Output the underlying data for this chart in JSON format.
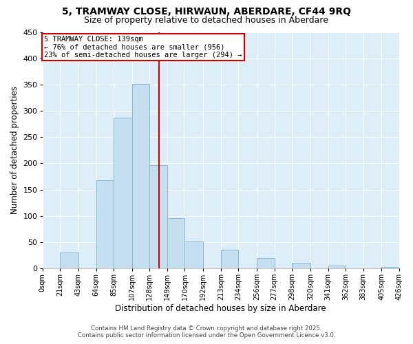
{
  "title": "5, TRAMWAY CLOSE, HIRWAUN, ABERDARE, CF44 9RQ",
  "subtitle": "Size of property relative to detached houses in Aberdare",
  "xlabel": "Distribution of detached houses by size in Aberdare",
  "ylabel": "Number of detached properties",
  "bar_color": "#c5dff0",
  "bar_edge_color": "#8bbad4",
  "vline_color": "#cc0000",
  "vline_x": 139,
  "annotation_title": "5 TRAMWAY CLOSE: 139sqm",
  "annotation_line1": "← 76% of detached houses are smaller (956)",
  "annotation_line2": "23% of semi-detached houses are larger (294) →",
  "annotation_box_color": "#ffffff",
  "annotation_box_edge": "#cc0000",
  "bin_edges": [
    0,
    21,
    43,
    64,
    85,
    107,
    128,
    149,
    170,
    192,
    213,
    234,
    256,
    277,
    298,
    320,
    341,
    362,
    383,
    405,
    426
  ],
  "bin_counts": [
    0,
    30,
    0,
    168,
    287,
    351,
    196,
    96,
    51,
    0,
    35,
    0,
    20,
    0,
    10,
    0,
    5,
    0,
    0,
    3
  ],
  "ylim_max": 450,
  "yticks": [
    0,
    50,
    100,
    150,
    200,
    250,
    300,
    350,
    400,
    450
  ],
  "tick_labels": [
    "0sqm",
    "21sqm",
    "43sqm",
    "64sqm",
    "85sqm",
    "107sqm",
    "128sqm",
    "149sqm",
    "170sqm",
    "192sqm",
    "213sqm",
    "234sqm",
    "256sqm",
    "277sqm",
    "298sqm",
    "320sqm",
    "341sqm",
    "362sqm",
    "383sqm",
    "405sqm",
    "426sqm"
  ],
  "footer_line1": "Contains HM Land Registry data © Crown copyright and database right 2025.",
  "footer_line2": "Contains public sector information licensed under the Open Government Licence v3.0.",
  "background_color": "#ffffff",
  "plot_bg_color": "#ddeef8"
}
